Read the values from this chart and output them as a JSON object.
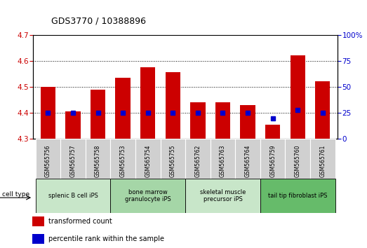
{
  "title": "GDS3770 / 10388896",
  "samples": [
    "GSM565756",
    "GSM565757",
    "GSM565758",
    "GSM565753",
    "GSM565754",
    "GSM565755",
    "GSM565762",
    "GSM565763",
    "GSM565764",
    "GSM565759",
    "GSM565760",
    "GSM565761"
  ],
  "transformed_counts": [
    4.5,
    4.405,
    4.49,
    4.535,
    4.575,
    4.555,
    4.44,
    4.44,
    4.43,
    4.355,
    4.62,
    4.52
  ],
  "percentile_ranks": [
    25,
    25,
    25,
    25,
    25,
    25,
    25,
    25,
    25,
    20,
    28,
    25
  ],
  "ylim_left": [
    4.3,
    4.7
  ],
  "ylim_right": [
    0,
    100
  ],
  "yticks_left": [
    4.3,
    4.4,
    4.5,
    4.6,
    4.7
  ],
  "yticks_right": [
    0,
    25,
    50,
    75,
    100
  ],
  "bar_color": "#cc0000",
  "dot_color": "#0000cc",
  "bar_width": 0.6,
  "cell_type_groups": [
    {
      "label": "splenic B cell iPS",
      "start": 0,
      "end": 3,
      "color": "#c8e6c9"
    },
    {
      "label": "bone marrow\ngranulocyte iPS",
      "start": 3,
      "end": 6,
      "color": "#a5d6a7"
    },
    {
      "label": "skeletal muscle\nprecursor iPS",
      "start": 6,
      "end": 9,
      "color": "#c8e6c9"
    },
    {
      "label": "tail tip fibroblast iPS",
      "start": 9,
      "end": 12,
      "color": "#66bb6a"
    }
  ],
  "legend_items": [
    {
      "label": "transformed count",
      "color": "#cc0000"
    },
    {
      "label": "percentile rank within the sample",
      "color": "#0000cc"
    }
  ],
  "grid_color": "#000000",
  "background_color": "#ffffff",
  "tick_color_left": "#cc0000",
  "tick_color_right": "#0000cc",
  "sample_box_color": "#d0d0d0"
}
